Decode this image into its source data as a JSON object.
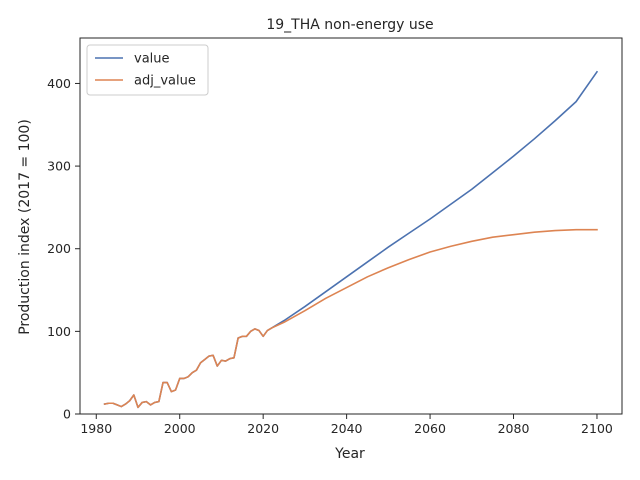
{
  "chart_data": {
    "type": "line",
    "title": "19_THA non-energy use",
    "xlabel": "Year",
    "ylabel": "Production index (2017 = 100)",
    "xlim": [
      1976.1,
      2106.0
    ],
    "ylim": [
      0,
      455
    ],
    "xticks": [
      1980,
      2000,
      2020,
      2040,
      2060,
      2080,
      2100
    ],
    "yticks": [
      0,
      100,
      200,
      300,
      400
    ],
    "legend": "top-left",
    "grid": false,
    "series": [
      {
        "name": "value",
        "color": "#4c72b0",
        "x": [
          1982,
          1983,
          1984,
          1985,
          1986,
          1987,
          1988,
          1989,
          1990,
          1991,
          1992,
          1993,
          1994,
          1995,
          1996,
          1997,
          1998,
          1999,
          2000,
          2001,
          2002,
          2003,
          2004,
          2005,
          2006,
          2007,
          2008,
          2009,
          2010,
          2011,
          2012,
          2013,
          2014,
          2015,
          2016,
          2017,
          2018,
          2019,
          2020,
          2021,
          2022,
          2025,
          2030,
          2035,
          2040,
          2045,
          2050,
          2055,
          2060,
          2065,
          2070,
          2075,
          2080,
          2085,
          2090,
          2095,
          2100
        ],
        "y": [
          12,
          13,
          13,
          11,
          9,
          12,
          16,
          23,
          8,
          14,
          15,
          11,
          14,
          15,
          38,
          38,
          27,
          29,
          43,
          43,
          45,
          50,
          53,
          62,
          66,
          70,
          71,
          58,
          65,
          64,
          67,
          68,
          92,
          94,
          94,
          100,
          103,
          101,
          94,
          101,
          104,
          113,
          130,
          148,
          166,
          184,
          202,
          219,
          236,
          254,
          272,
          292,
          312,
          333,
          355,
          378,
          414
        ]
      },
      {
        "name": "adj_value",
        "color": "#dd8452",
        "x": [
          1982,
          1983,
          1984,
          1985,
          1986,
          1987,
          1988,
          1989,
          1990,
          1991,
          1992,
          1993,
          1994,
          1995,
          1996,
          1997,
          1998,
          1999,
          2000,
          2001,
          2002,
          2003,
          2004,
          2005,
          2006,
          2007,
          2008,
          2009,
          2010,
          2011,
          2012,
          2013,
          2014,
          2015,
          2016,
          2017,
          2018,
          2019,
          2020,
          2021,
          2022,
          2025,
          2030,
          2035,
          2040,
          2045,
          2050,
          2055,
          2060,
          2065,
          2070,
          2075,
          2080,
          2085,
          2090,
          2095,
          2100
        ],
        "y": [
          12,
          13,
          13,
          11,
          9,
          12,
          16,
          23,
          8,
          14,
          15,
          11,
          14,
          15,
          38,
          38,
          27,
          29,
          43,
          43,
          45,
          50,
          53,
          62,
          66,
          70,
          71,
          58,
          65,
          64,
          67,
          68,
          92,
          94,
          94,
          100,
          103,
          101,
          94,
          101,
          104,
          111,
          125,
          140,
          153,
          166,
          177,
          187,
          196,
          203,
          209,
          214,
          217,
          220,
          222,
          223,
          223
        ]
      }
    ]
  }
}
